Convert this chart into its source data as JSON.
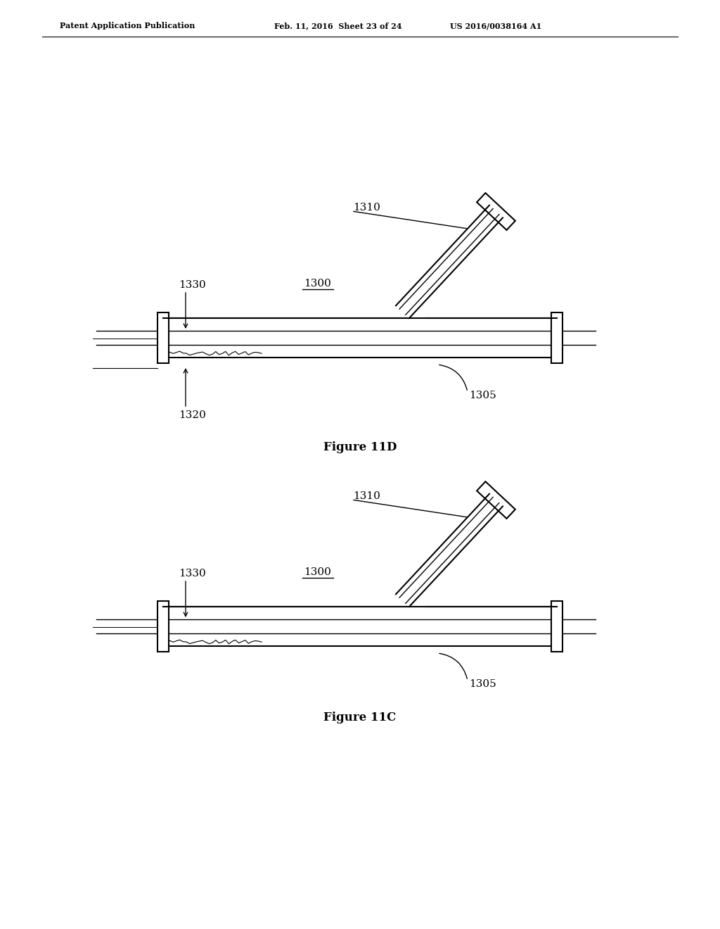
{
  "background_color": "#ffffff",
  "header_left": "Patent Application Publication",
  "header_mid": "Feb. 11, 2016  Sheet 23 of 24",
  "header_right": "US 2016/0038164 A1",
  "fig11c_label": "Figure 11C",
  "fig11d_label": "Figure 11D",
  "line_color": "#000000",
  "fig_width": 10.24,
  "fig_height": 13.2,
  "dpi": 100
}
